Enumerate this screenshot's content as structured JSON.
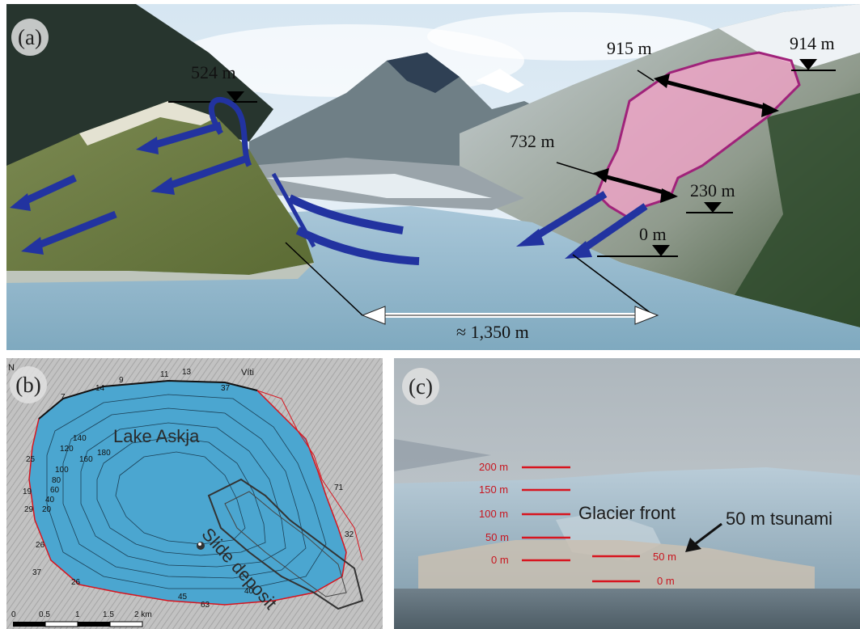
{
  "panel_a": {
    "label": "(a)",
    "elevations": {
      "e524": "524 m",
      "e915": "915 m",
      "e914": "914 m",
      "e732": "732 m",
      "e230": "230 m",
      "e0": "0 m"
    },
    "distance": "≈ 1,350 m"
  },
  "panel_b": {
    "label": "(b)",
    "north": "N",
    "place": "Víti",
    "lake_name": "Lake Askja",
    "slide_label": "Slide deposit",
    "depth_contours": [
      "140",
      "120",
      "160",
      "180",
      "100",
      "80",
      "60",
      "40",
      "20"
    ],
    "shore_heights": [
      "14",
      "9",
      "11",
      "13",
      "7",
      "37",
      "25",
      "19",
      "29",
      "26",
      "37",
      "26",
      "45",
      "63",
      "40",
      "71",
      "32"
    ],
    "scale_ticks": [
      "0",
      "0.5",
      "1",
      "1.5",
      "2 km"
    ]
  },
  "panel_c": {
    "label": "(c)",
    "scale_labels": [
      "200 m",
      "150 m",
      "100 m",
      "50 m",
      "0 m"
    ],
    "glacier_label": "Glacier front",
    "wave_labels": [
      "50 m",
      "0 m"
    ],
    "tsunami_label": "50 m tsunami"
  },
  "colors": {
    "slide_fill": "#f2a3c8",
    "slide_edge": "#a0227a",
    "flow_arrows": "#2233a0",
    "scale_red": "#d8141e",
    "lake_blue": "#4ba6d0"
  }
}
